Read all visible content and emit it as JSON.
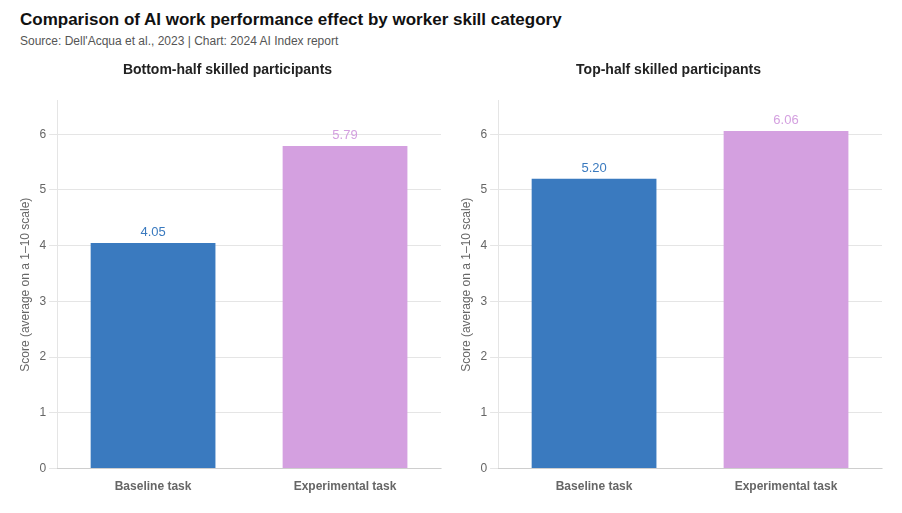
{
  "title": "Comparison of AI work performance effect by worker skill category",
  "subtitle": "Source: Dell'Acqua et al., 2023 | Chart: 2024 AI Index report",
  "chart_data": [
    {
      "type": "bar",
      "title": "Bottom-half skilled participants",
      "categories": [
        "Baseline task",
        "Experimental task"
      ],
      "values": [
        4.05,
        5.79
      ],
      "value_labels": [
        "4.05",
        "5.79"
      ],
      "colors": [
        "#3a7abf",
        "#d4a0e0"
      ],
      "ylabel": "Score (average on a 1–10 scale)",
      "ylim": [
        0,
        6.6
      ],
      "yticks": [
        0,
        1,
        2,
        3,
        4,
        5,
        6
      ],
      "grid": true,
      "data_labels": true
    },
    {
      "type": "bar",
      "title": "Top-half skilled participants",
      "categories": [
        "Baseline task",
        "Experimental task"
      ],
      "values": [
        5.2,
        6.06
      ],
      "value_labels": [
        "5.20",
        "6.06"
      ],
      "colors": [
        "#3a7abf",
        "#d4a0e0"
      ],
      "ylabel": "Score (average on a 1–10 scale)",
      "ylim": [
        0,
        6.6
      ],
      "yticks": [
        0,
        1,
        2,
        3,
        4,
        5,
        6
      ],
      "grid": true,
      "data_labels": true
    }
  ]
}
